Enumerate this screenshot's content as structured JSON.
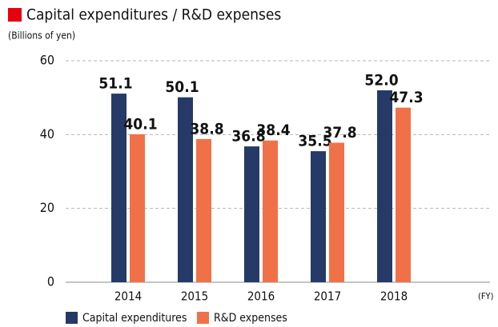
{
  "chart_data": {
    "type": "bar",
    "title": "Capital expenditures / R&D expenses",
    "ylabel": "(Billions of yen)",
    "xlabel": "(FY)",
    "categories": [
      "2014",
      "2015",
      "2016",
      "2017",
      "2018"
    ],
    "series": [
      {
        "name": "Capital expenditures",
        "color": "#253a66",
        "values": [
          51.1,
          50.1,
          36.8,
          35.5,
          52.0
        ],
        "value_labels": [
          "51.1",
          "50.1",
          "36.8",
          "35.5",
          "52.0"
        ]
      },
      {
        "name": "R&D expenses",
        "color": "#f07148",
        "values": [
          40.1,
          38.8,
          38.4,
          37.8,
          47.3
        ],
        "value_labels": [
          "40.1",
          "38.8",
          "38.4",
          "37.8",
          "47.3"
        ]
      }
    ],
    "ylim": [
      0,
      60
    ],
    "yticks": [
      0,
      20,
      40,
      60
    ],
    "grid": true,
    "title_marker_color": "#e60012"
  }
}
